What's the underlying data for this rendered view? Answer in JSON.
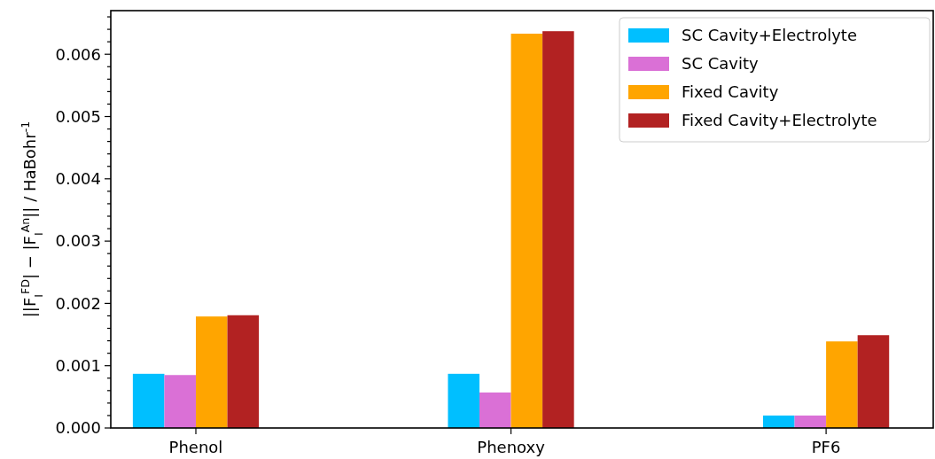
{
  "chart_data": {
    "type": "bar",
    "ylabel": "||F$_{I}$$^{FD}$| − |F$_{I}$$^{An}$|| / HaBohr$^{-1}$",
    "categories": [
      "Phenol",
      "Phenoxy",
      "PF6"
    ],
    "series": [
      {
        "name": "SC Cavity+Electrolyte",
        "color": "#00bfff",
        "values": [
          0.00087,
          0.00087,
          0.0002
        ]
      },
      {
        "name": "SC Cavity",
        "color": "#da70d6",
        "values": [
          0.00085,
          0.00057,
          0.0002
        ]
      },
      {
        "name": "Fixed Cavity",
        "color": "#ffa500",
        "values": [
          0.00179,
          0.00633,
          0.00139
        ]
      },
      {
        "name": "Fixed Cavity+Electrolyte",
        "color": "#b22222",
        "values": [
          0.00181,
          0.00637,
          0.00149
        ]
      }
    ],
    "ylim": [
      0,
      0.0067
    ],
    "yticks": [
      {
        "value": 0,
        "label": "0.000"
      },
      {
        "value": 0.0002,
        "label": null
      },
      {
        "value": 0.0004,
        "label": null
      },
      {
        "value": 0.0006,
        "label": null
      },
      {
        "value": 0.0008,
        "label": null
      },
      {
        "value": 0.001,
        "label": "0.001"
      },
      {
        "value": 0.0012,
        "label": null
      },
      {
        "value": 0.0014,
        "label": null
      },
      {
        "value": 0.0016,
        "label": null
      },
      {
        "value": 0.0018,
        "label": null
      },
      {
        "value": 0.002,
        "label": "0.002"
      },
      {
        "value": 0.0022,
        "label": null
      },
      {
        "value": 0.0024,
        "label": null
      },
      {
        "value": 0.0026,
        "label": null
      },
      {
        "value": 0.0028,
        "label": null
      },
      {
        "value": 0.003,
        "label": "0.003"
      },
      {
        "value": 0.0032,
        "label": null
      },
      {
        "value": 0.0034,
        "label": null
      },
      {
        "value": 0.0036,
        "label": null
      },
      {
        "value": 0.0038,
        "label": null
      },
      {
        "value": 0.004,
        "label": "0.004"
      },
      {
        "value": 0.0042,
        "label": null
      },
      {
        "value": 0.0044,
        "label": null
      },
      {
        "value": 0.0046,
        "label": null
      },
      {
        "value": 0.0048,
        "label": null
      },
      {
        "value": 0.005,
        "label": "0.005"
      },
      {
        "value": 0.0052,
        "label": null
      },
      {
        "value": 0.0054,
        "label": null
      },
      {
        "value": 0.0056,
        "label": null
      },
      {
        "value": 0.0058,
        "label": null
      },
      {
        "value": 0.006,
        "label": "0.006"
      },
      {
        "value": 0.0062,
        "label": null
      },
      {
        "value": 0.0064,
        "label": null
      },
      {
        "value": 0.0066,
        "label": null
      }
    ],
    "grid": false,
    "legend": "top right"
  }
}
